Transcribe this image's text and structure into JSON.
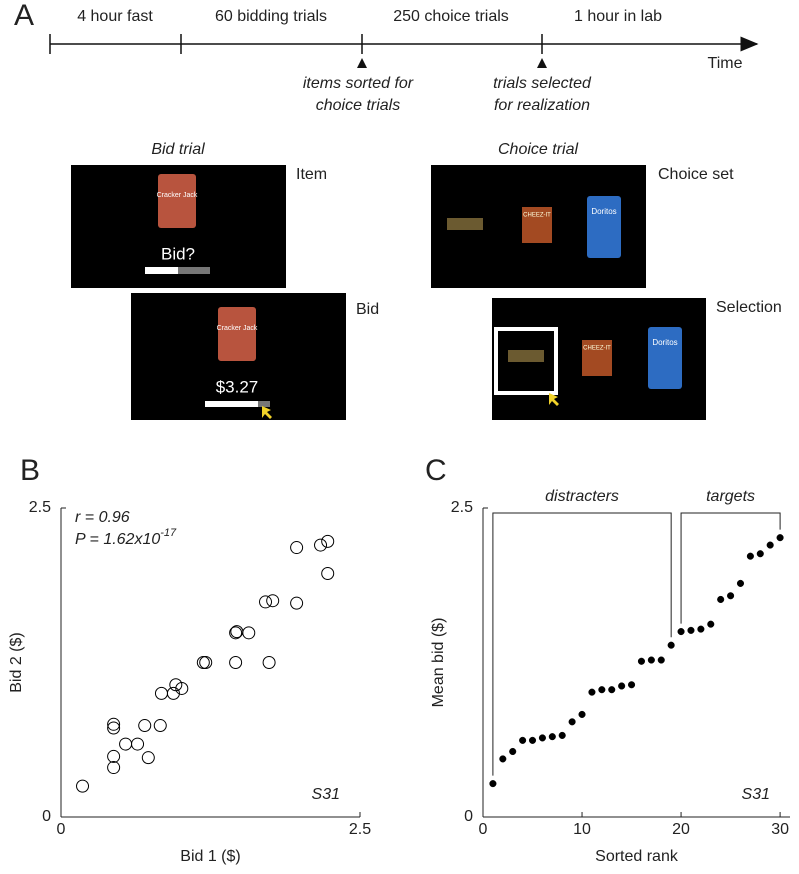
{
  "panel_labels": [
    "A",
    "B",
    "C"
  ],
  "timeline": {
    "segments": [
      "4 hour fast",
      "60 bidding trials",
      "250 choice trials",
      "1 hour in lab"
    ],
    "axis_label": "Time",
    "markers": [
      [
        "items sorted for",
        "choice trials"
      ],
      [
        "trials selected",
        "for realization"
      ]
    ]
  },
  "trials": {
    "bid_title": "Bid trial",
    "choice_title": "Choice trial",
    "item": "Item",
    "bid": "Bid",
    "choice_set": "Choice set",
    "selection": "Selection",
    "bid_prompt": "Bid?",
    "bid_amount": "$3.27",
    "products": [
      "Cracker Jack",
      "CHEEZ-IT",
      "Doritos"
    ]
  },
  "chart_data": [
    {
      "type": "scatter",
      "marker": "open",
      "xlabel": "Bid 1 ($)",
      "ylabel": "Bid 2 ($)",
      "annotations": [
        "r = 0.96",
        "P = 1.62x10"
      ],
      "annotation_exponent": "-17",
      "subject_label": "S31",
      "x": [
        0.18,
        0.44,
        0.44,
        0.44,
        0.44,
        0.54,
        0.64,
        0.73,
        0.7,
        0.83,
        0.84,
        0.94,
        0.96,
        1.01,
        1.19,
        1.21,
        1.46,
        1.46,
        1.47,
        1.57,
        1.74,
        1.71,
        1.77,
        1.97,
        1.97,
        2.17,
        2.23,
        2.23
      ],
      "values": [
        0.25,
        0.4,
        0.49,
        0.72,
        0.75,
        0.59,
        0.59,
        0.48,
        0.74,
        0.74,
        1.0,
        1.0,
        1.07,
        1.04,
        1.25,
        1.25,
        1.25,
        1.49,
        1.5,
        1.49,
        1.25,
        1.74,
        1.75,
        1.73,
        2.18,
        2.2,
        2.23,
        1.97
      ],
      "xlim": [
        0,
        2.5
      ],
      "ylim": [
        0,
        2.5
      ],
      "xticks": [
        0,
        2.5
      ],
      "yticks": [
        0,
        2.5
      ]
    },
    {
      "type": "scatter",
      "marker": "filled",
      "xlabel": "Sorted rank",
      "ylabel": "Mean bid  ($)",
      "subject_label": "S31",
      "x": [
        1,
        2,
        3,
        4,
        5,
        6,
        7,
        8,
        9,
        10,
        11,
        12,
        13,
        14,
        15,
        16,
        17,
        18,
        19,
        20,
        21,
        22,
        23,
        24,
        25,
        26,
        27,
        28,
        29,
        30
      ],
      "values": [
        0.27,
        0.47,
        0.53,
        0.62,
        0.62,
        0.64,
        0.65,
        0.66,
        0.77,
        0.83,
        1.01,
        1.03,
        1.03,
        1.06,
        1.07,
        1.26,
        1.27,
        1.27,
        1.39,
        1.5,
        1.51,
        1.52,
        1.56,
        1.76,
        1.79,
        1.89,
        2.11,
        2.13,
        2.2,
        2.26
      ],
      "brackets": [
        {
          "label": "distracters",
          "from": 1,
          "to": 19
        },
        {
          "label": "targets",
          "from": 20,
          "to": 30
        }
      ],
      "xlim": [
        0,
        31
      ],
      "ylim": [
        0,
        2.5
      ],
      "xticks": [
        0,
        10,
        20,
        30
      ],
      "yticks": [
        0,
        2.5
      ]
    }
  ]
}
